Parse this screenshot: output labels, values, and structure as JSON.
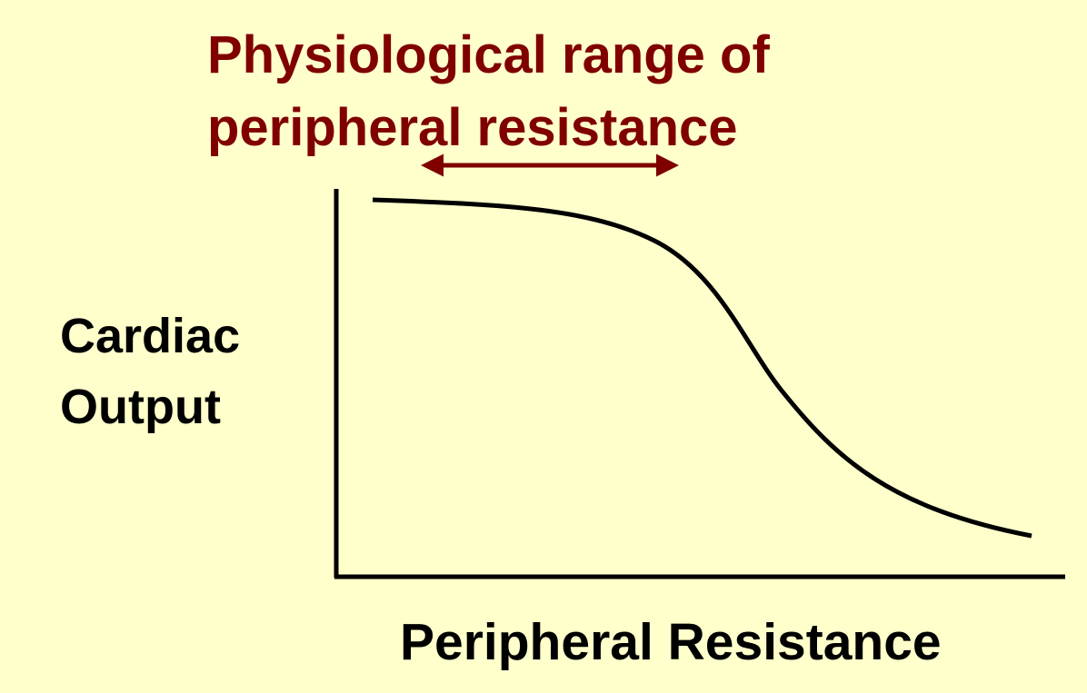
{
  "title": {
    "lines": [
      "Physiological range of",
      "peripheral resistance"
    ]
  },
  "y_label": {
    "lines": [
      "Cardiac",
      "Output"
    ]
  },
  "x_label": "Peripheral Resistance"
}
